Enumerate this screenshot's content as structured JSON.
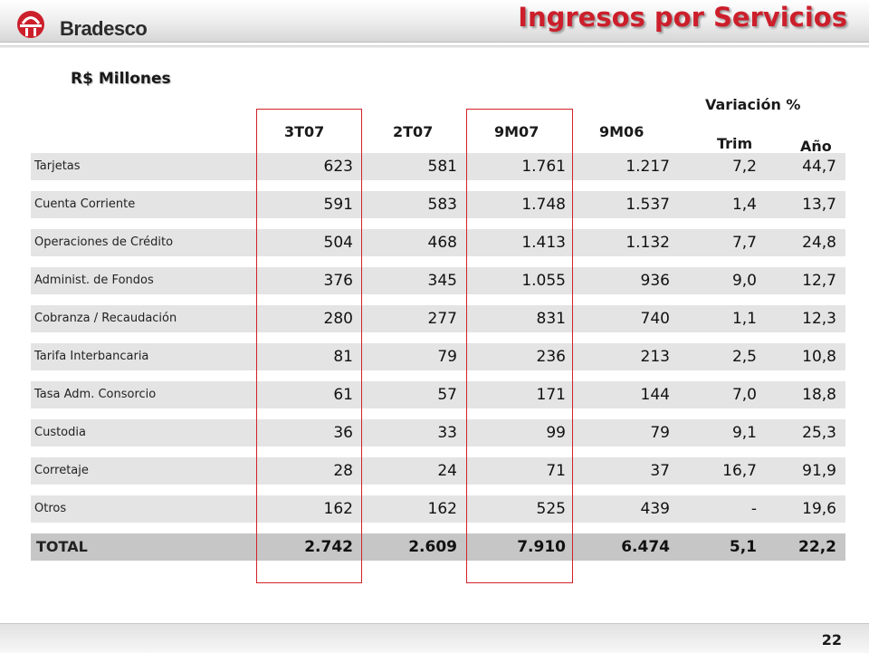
{
  "header": {
    "brand": "Bradesco",
    "title": "Ingresos por Servicios",
    "colors": {
      "title": "#cc1f2b",
      "logo": "#cc1f2b"
    }
  },
  "subtitle": "R$ Millones",
  "table": {
    "variation_header": "Variación %",
    "columns": [
      "3T07",
      "2T07",
      "9M07",
      "9M06",
      "Trim",
      "Año"
    ],
    "rows": [
      {
        "label": "Tarjetas",
        "values": [
          "623",
          "581",
          "1.761",
          "1.217",
          "7,2",
          "44,7"
        ]
      },
      {
        "label": "Cuenta Corriente",
        "values": [
          "591",
          "583",
          "1.748",
          "1.537",
          "1,4",
          "13,7"
        ]
      },
      {
        "label": "Operaciones de Crédito",
        "values": [
          "504",
          "468",
          "1.413",
          "1.132",
          "7,7",
          "24,8"
        ]
      },
      {
        "label": "Administ. de Fondos",
        "values": [
          "376",
          "345",
          "1.055",
          "936",
          "9,0",
          "12,7"
        ]
      },
      {
        "label": "Cobranza / Recaudación",
        "values": [
          "280",
          "277",
          "831",
          "740",
          "1,1",
          "12,3"
        ]
      },
      {
        "label": "Tarifa Interbancaria",
        "values": [
          "81",
          "79",
          "236",
          "213",
          "2,5",
          "10,8"
        ]
      },
      {
        "label": "Tasa Adm. Consorcio",
        "values": [
          "61",
          "57",
          "171",
          "144",
          "7,0",
          "18,8"
        ]
      },
      {
        "label": "Custodia",
        "values": [
          "36",
          "33",
          "99",
          "79",
          "9,1",
          "25,3"
        ]
      },
      {
        "label": "Corretaje",
        "values": [
          "28",
          "24",
          "71",
          "37",
          "16,7",
          "91,9"
        ]
      },
      {
        "label": "Otros",
        "values": [
          "162",
          "162",
          "525",
          "439",
          "-",
          "19,6"
        ]
      }
    ],
    "total": {
      "label": "TOTAL",
      "values": [
        "2.742",
        "2.609",
        "7.910",
        "6.474",
        "5,1",
        "22,2"
      ]
    }
  },
  "footer": {
    "page_number": "22"
  }
}
